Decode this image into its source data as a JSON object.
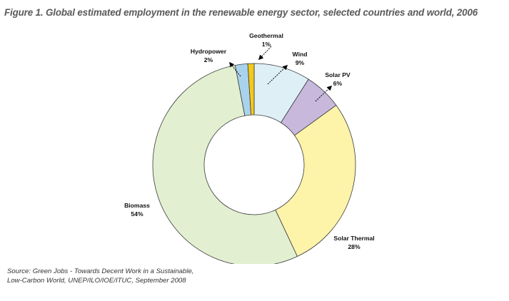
{
  "figure": {
    "title": "Figure 1. Global estimated employment in the renewable energy sector, selected countries and world, 2006",
    "source": "Source: Green Jobs - Towards Decent Work in a Sustainable, Low-Carbon World, UNEP/ILO/IOE/ITUC, September 2008"
  },
  "chart_data": {
    "type": "pie",
    "variant": "donut",
    "title": "Figure 1. Global estimated employment in the renewable energy sector, selected countries and world, 2006",
    "unit": "%",
    "categories": [
      "Wind",
      "Solar PV",
      "Solar Thermal",
      "Biomass",
      "Hydropower",
      "Geothermal"
    ],
    "values": [
      9,
      6,
      28,
      54,
      2,
      1
    ],
    "value_labels": [
      "9%",
      "6%",
      "28%",
      "54%",
      "2%",
      "1%"
    ],
    "colors": [
      "#def0f6",
      "#c7b8dc",
      "#fdf3a9",
      "#e2efd1",
      "#a9d3ec",
      "#f3c91c"
    ],
    "legend": "none",
    "label_placement": "outside, some with leader arrows"
  }
}
